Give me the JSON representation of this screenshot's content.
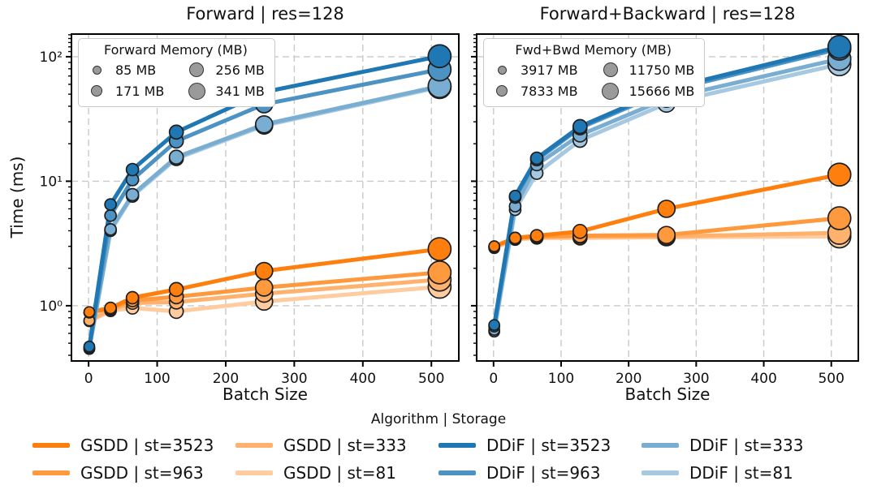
{
  "figure": {
    "background": "#ffffff"
  },
  "colors": {
    "gsdd_shades": [
      "#ff7f0e",
      "#ff993e",
      "#ffb26e",
      "#ffcc9f"
    ],
    "ddif_shades": [
      "#1f77b4",
      "#4c92c3",
      "#79add2",
      "#a6c8e1"
    ],
    "marker_edge": "#1f1f1f",
    "grid": "#c9c9c9"
  },
  "marker_radii": [
    6.5,
    7,
    7.5,
    8.5,
    10.5,
    14
  ],
  "legend": {
    "title": "Algorithm | Storage",
    "entries": [
      {
        "label": "GSDD | st=3523",
        "color": "#ff7f0e"
      },
      {
        "label": "GSDD | st=963",
        "color": "#ff993e"
      },
      {
        "label": "GSDD | st=333",
        "color": "#ffb26e"
      },
      {
        "label": "GSDD | st=81",
        "color": "#ffcc9f"
      },
      {
        "label": "DDiF | st=3523",
        "color": "#1f77b4"
      },
      {
        "label": "DDiF | st=963",
        "color": "#4c92c3"
      },
      {
        "label": "DDiF | st=333",
        "color": "#79add2"
      },
      {
        "label": "DDiF | st=81",
        "color": "#a6c8e1"
      }
    ]
  },
  "chart_data": [
    {
      "type": "line",
      "title": "Forward | res=128",
      "xlabel": "Batch Size",
      "ylabel": "Time (ms)",
      "yscale": "log",
      "grid": true,
      "xlim": [
        -25,
        540
      ],
      "ylim": [
        0.36,
        152
      ],
      "x_ticks": [
        0,
        100,
        200,
        300,
        400,
        500
      ],
      "x_tick_labels": [
        "0",
        "100",
        "200",
        "300",
        "400",
        "500"
      ],
      "y_ticks": [
        {
          "value": 1,
          "label": "10⁰"
        },
        {
          "value": 10,
          "label": "10¹"
        },
        {
          "value": 100,
          "label": "10²"
        }
      ],
      "show_y_tick_labels": true,
      "x": [
        1,
        32,
        64,
        128,
        256,
        512
      ],
      "series": [
        {
          "name": "GSDD | st=3523",
          "color": "#ff7f0e",
          "values": [
            0.89,
            0.96,
            1.16,
            1.35,
            1.9,
            2.85
          ]
        },
        {
          "name": "GSDD | st=963",
          "color": "#ff993e",
          "values": [
            0.88,
            0.95,
            1.1,
            1.18,
            1.4,
            1.85
          ]
        },
        {
          "name": "GSDD | st=333",
          "color": "#ffb26e",
          "values": [
            0.76,
            0.93,
            1.05,
            1.07,
            1.25,
            1.62
          ]
        },
        {
          "name": "GSDD | st=81",
          "color": "#ffcc9f",
          "values": [
            0.75,
            0.91,
            0.96,
            0.9,
            1.08,
            1.42
          ]
        },
        {
          "name": "DDiF | st=3523",
          "color": "#1f77b4",
          "values": [
            0.47,
            6.5,
            12.4,
            24.8,
            52,
            101
          ]
        },
        {
          "name": "DDiF | st=963",
          "color": "#4c92c3",
          "values": [
            0.46,
            5.3,
            10.3,
            21.0,
            41.5,
            79
          ]
        },
        {
          "name": "DDiF | st=333",
          "color": "#79add2",
          "values": [
            0.45,
            4.1,
            7.8,
            15.6,
            28.6,
            58
          ]
        },
        {
          "name": "DDiF | st=81",
          "color": "#a6c8e1",
          "values": [
            0.45,
            4.0,
            7.6,
            15.2,
            28.0,
            57
          ]
        }
      ],
      "memory_legend": {
        "title": "Forward Memory (MB)",
        "entries": [
          {
            "label": "85 MB",
            "diameter": 11
          },
          {
            "label": "256 MB",
            "diameter": 18
          },
          {
            "label": "171 MB",
            "diameter": 14
          },
          {
            "label": "341 MB",
            "diameter": 21
          }
        ]
      }
    },
    {
      "type": "line",
      "title": "Forward+Backward | res=128",
      "xlabel": "Batch Size",
      "ylabel": "",
      "yscale": "log",
      "grid": true,
      "xlim": [
        -25,
        540
      ],
      "ylim": [
        0.36,
        152
      ],
      "x_ticks": [
        0,
        100,
        200,
        300,
        400,
        500
      ],
      "x_tick_labels": [
        "0",
        "100",
        "200",
        "300",
        "400",
        "500"
      ],
      "y_ticks": [
        {
          "value": 1,
          "label": "10⁰"
        },
        {
          "value": 10,
          "label": "10¹"
        },
        {
          "value": 100,
          "label": "10²"
        }
      ],
      "show_y_tick_labels": false,
      "x": [
        1,
        32,
        64,
        128,
        256,
        512
      ],
      "series": [
        {
          "name": "GSDD | st=3523",
          "color": "#ff7f0e",
          "values": [
            3.0,
            3.5,
            3.65,
            3.95,
            6.0,
            11.3
          ]
        },
        {
          "name": "GSDD | st=963",
          "color": "#ff993e",
          "values": [
            3.0,
            3.5,
            3.6,
            3.65,
            3.7,
            5.05
          ]
        },
        {
          "name": "GSDD | st=333",
          "color": "#ffb26e",
          "values": [
            2.95,
            3.45,
            3.55,
            3.6,
            3.6,
            3.85
          ]
        },
        {
          "name": "GSDD | st=81",
          "color": "#ffcc9f",
          "values": [
            2.9,
            3.4,
            3.5,
            3.5,
            3.55,
            3.6
          ]
        },
        {
          "name": "DDiF | st=3523",
          "color": "#1f77b4",
          "values": [
            0.7,
            7.6,
            15.3,
            27.5,
            55,
            120
          ]
        },
        {
          "name": "DDiF | st=963",
          "color": "#4c92c3",
          "values": [
            0.68,
            7.4,
            14.9,
            26.8,
            53,
            116
          ]
        },
        {
          "name": "DDiF | st=333",
          "color": "#79add2",
          "values": [
            0.64,
            6.3,
            13.6,
            23.5,
            46,
            96
          ]
        },
        {
          "name": "DDiF | st=81",
          "color": "#a6c8e1",
          "values": [
            0.62,
            5.9,
            11.6,
            21.3,
            42,
            87
          ]
        }
      ],
      "memory_legend": {
        "title": "Fwd+Bwd Memory (MB)",
        "entries": [
          {
            "label": "3917 MB",
            "diameter": 11
          },
          {
            "label": "11750 MB",
            "diameter": 18
          },
          {
            "label": "7833 MB",
            "diameter": 14
          },
          {
            "label": "15666 MB",
            "diameter": 21
          }
        ]
      }
    }
  ]
}
